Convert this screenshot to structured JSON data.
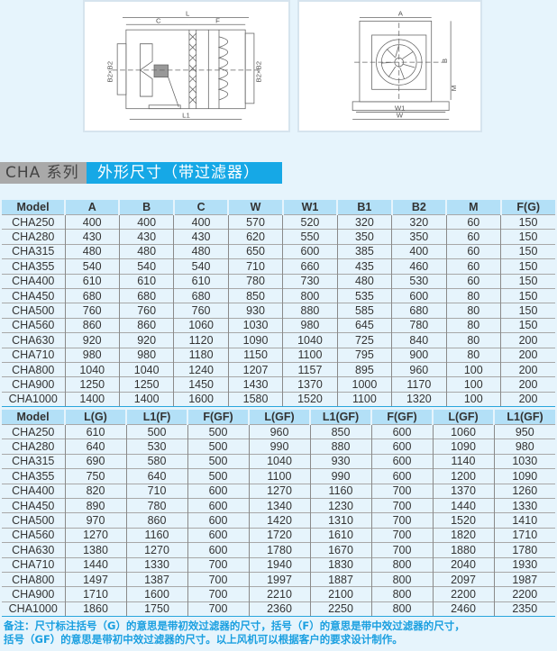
{
  "drawings": {
    "side_view": {
      "labels": {
        "L": "L",
        "C": "C",
        "F": "F",
        "L1": "L1",
        "inlet": "B2×B2",
        "outlet": "B2×B2"
      }
    },
    "front_view": {
      "labels": {
        "A": "A",
        "B": "B",
        "M": "M",
        "W1": "W1",
        "W": "W"
      }
    }
  },
  "title": {
    "series": "CHA 系列",
    "heading": "外形尺寸（带过滤器）"
  },
  "table1": {
    "headers": [
      "Model",
      "A",
      "B",
      "C",
      "W",
      "W1",
      "B1",
      "B2",
      "M",
      "F(G)"
    ],
    "rows": [
      [
        "CHA250",
        "400",
        "400",
        "400",
        "570",
        "520",
        "320",
        "320",
        "60",
        "150"
      ],
      [
        "CHA280",
        "430",
        "430",
        "430",
        "620",
        "550",
        "350",
        "350",
        "60",
        "150"
      ],
      [
        "CHA315",
        "480",
        "480",
        "480",
        "650",
        "600",
        "385",
        "400",
        "60",
        "150"
      ],
      [
        "CHA355",
        "540",
        "540",
        "540",
        "710",
        "660",
        "435",
        "460",
        "60",
        "150"
      ],
      [
        "CHA400",
        "610",
        "610",
        "610",
        "780",
        "730",
        "480",
        "530",
        "60",
        "150"
      ],
      [
        "CHA450",
        "680",
        "680",
        "680",
        "850",
        "800",
        "535",
        "600",
        "80",
        "150"
      ],
      [
        "CHA500",
        "760",
        "760",
        "760",
        "930",
        "880",
        "585",
        "680",
        "80",
        "150"
      ],
      [
        "CHA560",
        "860",
        "860",
        "1060",
        "1030",
        "980",
        "645",
        "780",
        "80",
        "150"
      ],
      [
        "CHA630",
        "920",
        "920",
        "1120",
        "1090",
        "1040",
        "725",
        "840",
        "80",
        "200"
      ],
      [
        "CHA710",
        "980",
        "980",
        "1180",
        "1150",
        "1100",
        "795",
        "900",
        "80",
        "200"
      ],
      [
        "CHA800",
        "1040",
        "1040",
        "1240",
        "1207",
        "1157",
        "895",
        "960",
        "100",
        "200"
      ],
      [
        "CHA900",
        "1250",
        "1250",
        "1450",
        "1430",
        "1370",
        "1000",
        "1170",
        "100",
        "200"
      ],
      [
        "CHA1000",
        "1400",
        "1400",
        "1600",
        "1580",
        "1520",
        "1100",
        "1320",
        "100",
        "200"
      ]
    ]
  },
  "table2": {
    "headers": [
      "Model",
      "L(G)",
      "L1(F)",
      "F(GF)",
      "L(GF)",
      "L1(GF)",
      "F(GF)",
      "L(GF)",
      "L1(GF)"
    ],
    "rows": [
      [
        "CHA250",
        "610",
        "500",
        "500",
        "960",
        "850",
        "600",
        "1060",
        "950"
      ],
      [
        "CHA280",
        "640",
        "530",
        "500",
        "990",
        "880",
        "600",
        "1090",
        "980"
      ],
      [
        "CHA315",
        "690",
        "580",
        "500",
        "1040",
        "930",
        "600",
        "1140",
        "1030"
      ],
      [
        "CHA355",
        "750",
        "640",
        "500",
        "1100",
        "990",
        "600",
        "1200",
        "1090"
      ],
      [
        "CHA400",
        "820",
        "710",
        "600",
        "1270",
        "1160",
        "700",
        "1370",
        "1260"
      ],
      [
        "CHA450",
        "890",
        "780",
        "600",
        "1340",
        "1230",
        "700",
        "1440",
        "1330"
      ],
      [
        "CHA500",
        "970",
        "860",
        "600",
        "1420",
        "1310",
        "700",
        "1520",
        "1410"
      ],
      [
        "CHA560",
        "1270",
        "1160",
        "600",
        "1720",
        "1610",
        "700",
        "1820",
        "1710"
      ],
      [
        "CHA630",
        "1380",
        "1270",
        "600",
        "1780",
        "1670",
        "700",
        "1880",
        "1780"
      ],
      [
        "CHA710",
        "1440",
        "1330",
        "700",
        "1940",
        "1830",
        "800",
        "2040",
        "1930"
      ],
      [
        "CHA800",
        "1497",
        "1387",
        "700",
        "1997",
        "1887",
        "800",
        "2097",
        "1987"
      ],
      [
        "CHA900",
        "1710",
        "1600",
        "700",
        "2210",
        "2100",
        "800",
        "2200",
        "2200"
      ],
      [
        "CHA1000",
        "1860",
        "1750",
        "700",
        "2360",
        "2250",
        "800",
        "2460",
        "2350"
      ]
    ]
  },
  "note": {
    "line1": "备注：尺寸标注括号（G）的意思是带初效过滤器的尺寸，括号（F）的意思是带中效过滤器的尺寸，",
    "line2": "括号（GF）的意思是带初中效过滤器的尺寸。以上风机可以根据客户的要求设计制作。"
  },
  "colors": {
    "accent": "#16a8e6",
    "header_bg": "#b3e0f7",
    "page_bg": "#e6f4fc",
    "note": "#1a9fe0"
  }
}
